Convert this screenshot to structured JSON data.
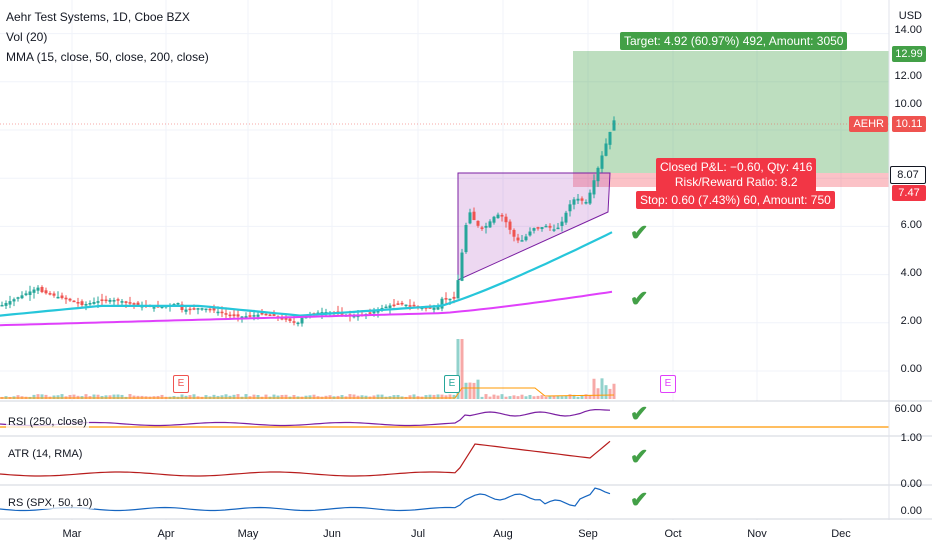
{
  "header": {
    "title": "Aehr Test Systems, 1D, Cboe BZX",
    "vol": "Vol (20)",
    "mma": "MMA (15, close, 50, close, 200, close)",
    "currency": "USD"
  },
  "chart_data": {
    "type": "candlestick",
    "symbol": "AEHR",
    "x_ticks": [
      "Mar",
      "Apr",
      "May",
      "Jun",
      "Jul",
      "Aug",
      "Sep",
      "Oct",
      "Nov",
      "Dec"
    ],
    "y_ticks": [
      "14.00",
      "12.00",
      "10.00",
      "6.00",
      "4.00",
      "2.00",
      "0.00"
    ],
    "ylim": [
      0,
      14
    ],
    "last_price": "10.11",
    "levels": {
      "target": "12.99",
      "entry": "8.07",
      "stop": "7.47"
    },
    "position": {
      "target_text": "Target: 4.92 (60.97%) 492, Amount: 3050",
      "closed_pnl": "Closed P&L: −0.60, Qty: 416",
      "risk_reward": "Risk/Reward Ratio: 8.2",
      "stop_text": "Stop: 0.60 (7.43%) 60, Amount: 750"
    },
    "earnings": [
      "E",
      "E",
      "E"
    ],
    "sub_panes": [
      {
        "name": "RSI (250, close)",
        "tick": "60.00",
        "color": "#7b1fa2"
      },
      {
        "name": "ATR (14, RMA)",
        "tick": "1.00",
        "color": "#b71c1c"
      },
      {
        "name": "RS (SPX, 50, 10)",
        "tick": "0.00",
        "color": "#1565c0"
      }
    ],
    "sub_ticks_extra": [
      "0.00"
    ],
    "colors": {
      "up": "#26a69a",
      "down": "#ef5350",
      "ma15": "#26c6da",
      "ma50": "#e040fb",
      "target": "#43a047",
      "stop": "#f23645"
    }
  }
}
